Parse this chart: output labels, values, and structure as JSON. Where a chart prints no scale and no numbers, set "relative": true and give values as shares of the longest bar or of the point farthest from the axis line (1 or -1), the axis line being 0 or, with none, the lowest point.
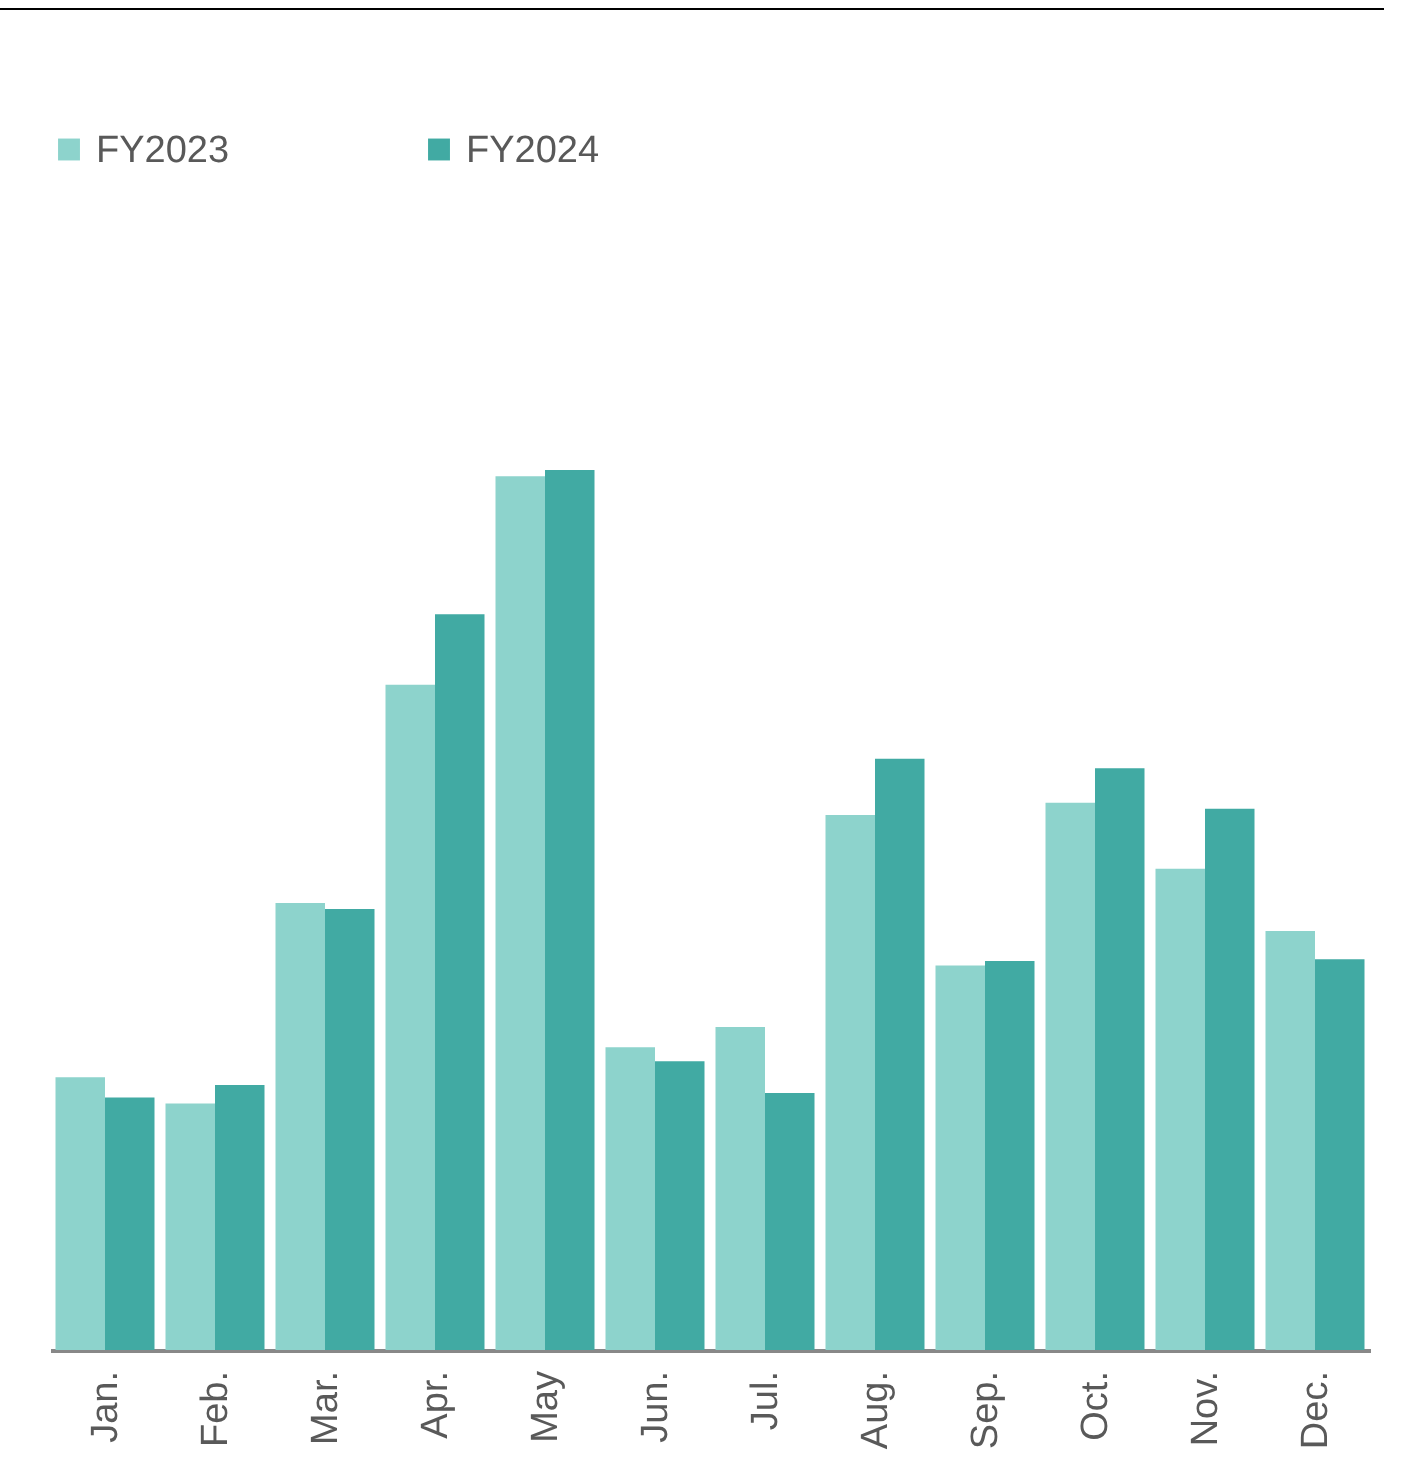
{
  "chart_data": {
    "type": "bar",
    "relative": true,
    "legend": "top",
    "categories": [
      "Jan.",
      "Feb.",
      "Mar.",
      "Apr.",
      "May",
      "Jun.",
      "Jul.",
      "Aug.",
      "Sep.",
      "Oct.",
      "Nov.",
      "Dec."
    ],
    "series": [
      {
        "name": "FY2023",
        "color": "#8dd3cc",
        "values": [
          0.31,
          0.28,
          0.508,
          0.756,
          0.993,
          0.344,
          0.367,
          0.608,
          0.437,
          0.622,
          0.547,
          0.476
        ]
      },
      {
        "name": "FY2024",
        "color": "#41aaa3",
        "values": [
          0.287,
          0.301,
          0.501,
          0.836,
          1,
          0.328,
          0.292,
          0.672,
          0.442,
          0.661,
          0.615,
          0.444
        ]
      }
    ]
  }
}
